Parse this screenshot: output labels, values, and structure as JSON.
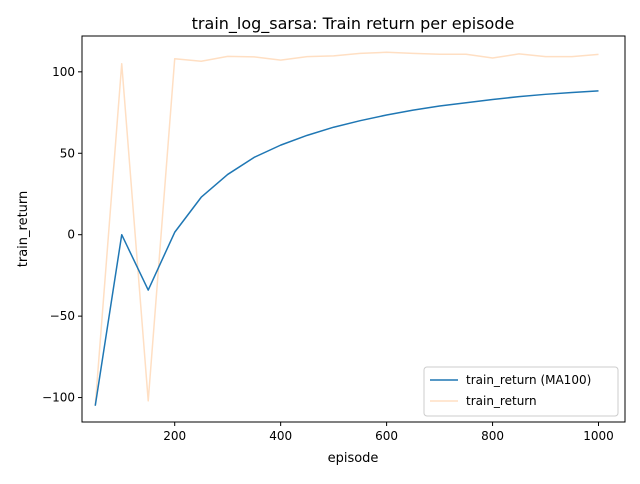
{
  "chart_data": {
    "type": "line",
    "title": "train_log_sarsa: Train return per episode",
    "xlabel": "episode",
    "ylabel": "train_return",
    "xlim": [
      25,
      1050
    ],
    "ylim": [
      -115,
      122
    ],
    "x_ticks": [
      200,
      400,
      600,
      800,
      1000
    ],
    "y_ticks": [
      -100,
      -50,
      0,
      50,
      100
    ],
    "x_tick_labels": [
      "200",
      "400",
      "600",
      "800",
      "1000"
    ],
    "y_tick_labels": [
      "−100",
      "−50",
      "0",
      "50",
      "100"
    ],
    "grid": false,
    "legend_position": "lower right",
    "series": [
      {
        "name": "train_return (MA100)",
        "color": "#1f77b4",
        "alpha": 1.0,
        "x": [
          50,
          100,
          150,
          200,
          250,
          300,
          350,
          400,
          450,
          500,
          550,
          600,
          650,
          700,
          750,
          800,
          850,
          900,
          950,
          1000
        ],
        "y": [
          -105,
          0,
          -34,
          1.5,
          23,
          37,
          47.5,
          55,
          61,
          66,
          70,
          73.5,
          76.5,
          79,
          81,
          83,
          84.8,
          86.2,
          87.3,
          88.3
        ]
      },
      {
        "name": "train_return",
        "color": "#ff7f0e",
        "alpha": 0.25,
        "x": [
          50,
          100,
          150,
          200,
          250,
          300,
          350,
          400,
          450,
          500,
          550,
          600,
          650,
          700,
          750,
          800,
          850,
          900,
          950,
          1000
        ],
        "y": [
          -105,
          105,
          -102,
          108,
          106.5,
          109.5,
          109.2,
          107.2,
          109.3,
          109.8,
          111.3,
          112,
          111.3,
          110.8,
          110.8,
          108.5,
          111,
          109.3,
          109.3,
          110.7
        ]
      }
    ]
  }
}
